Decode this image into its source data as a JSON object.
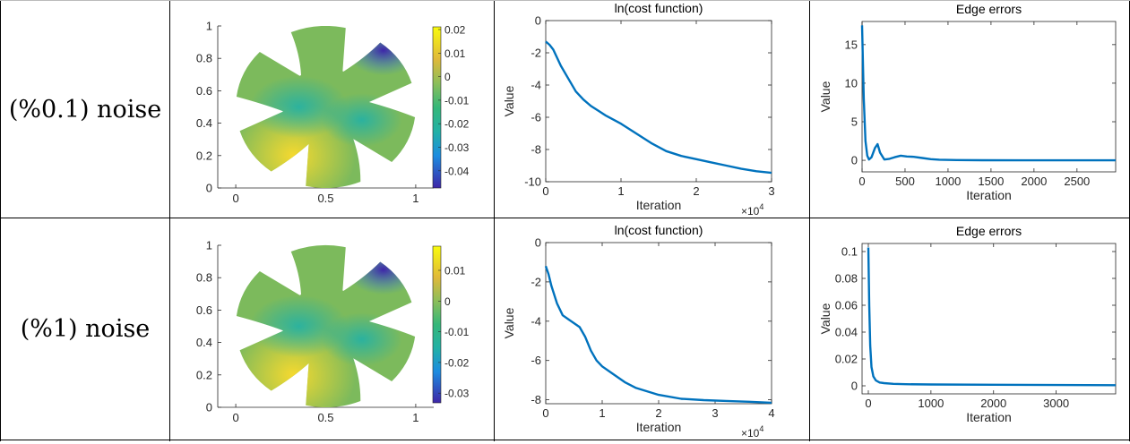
{
  "rows": [
    {
      "label": "(%0.1) noise",
      "map": {
        "xticks": [
          "0",
          "0.5",
          "1"
        ],
        "yticks": [
          "0",
          "0.2",
          "0.4",
          "0.6",
          "0.8",
          "1"
        ],
        "colorbar_ticks": [
          "0.02",
          "0.01",
          "0",
          "-0.01",
          "-0.02",
          "-0.03",
          "-0.04"
        ],
        "colors": {
          "low": "#3e26a8",
          "mid": "#22b1a6",
          "high": "#f9fb0e"
        }
      },
      "cost_chart": {
        "type": "line",
        "title": "ln(cost function)",
        "xlabel": "Iteration",
        "ylabel": "Value",
        "x_exponent_label": "×10",
        "x_exponent": "4",
        "xticks": [
          "0",
          "1",
          "2",
          "3"
        ],
        "yticks": [
          "0",
          "-2",
          "-4",
          "-6",
          "-8",
          "-10"
        ],
        "xlim": [
          0,
          3
        ],
        "ylim": [
          -10,
          0
        ],
        "series": [
          {
            "x": [
              0,
              0.05,
              0.1,
              0.2,
              0.3,
              0.4,
              0.5,
              0.6,
              0.7,
              0.8,
              1.0,
              1.2,
              1.4,
              1.6,
              1.8,
              2.0,
              2.2,
              2.4,
              2.6,
              2.8,
              3.0
            ],
            "y": [
              -1.3,
              -1.5,
              -1.8,
              -2.8,
              -3.6,
              -4.4,
              -4.9,
              -5.3,
              -5.6,
              -5.9,
              -6.4,
              -7.0,
              -7.6,
              -8.1,
              -8.4,
              -8.6,
              -8.8,
              -9.0,
              -9.2,
              -9.35,
              -9.45
            ]
          }
        ],
        "color": "#0072bd"
      },
      "edge_chart": {
        "type": "line",
        "title": "Edge errors",
        "xlabel": "Iteration",
        "ylabel": "Value",
        "xticks": [
          "0",
          "500",
          "1000",
          "1500",
          "2000",
          "2500"
        ],
        "yticks": [
          "0",
          "5",
          "10",
          "15"
        ],
        "xlim": [
          0,
          2950
        ],
        "ylim": [
          -1.5,
          18
        ],
        "series": [
          {
            "x": [
              0,
              20,
              40,
              60,
              80,
              110,
              150,
              180,
              210,
              260,
              320,
              380,
              450,
              520,
              600,
              700,
              800,
              900,
              1100,
              1400,
              2000,
              2950
            ],
            "y": [
              17.5,
              8.0,
              2.5,
              0.6,
              0.1,
              0.4,
              1.6,
              2.1,
              1.0,
              0.1,
              0.2,
              0.4,
              0.6,
              0.5,
              0.45,
              0.3,
              0.15,
              0.08,
              0.03,
              0.01,
              0.0,
              0.0
            ]
          }
        ],
        "color": "#0072bd"
      }
    },
    {
      "label": "(%1) noise",
      "map": {
        "xticks": [
          "0",
          "0.5",
          "1"
        ],
        "yticks": [
          "0",
          "0.2",
          "0.4",
          "0.6",
          "0.8",
          "1"
        ],
        "colorbar_ticks": [
          "0.01",
          "0",
          "-0.01",
          "-0.02",
          "-0.03"
        ],
        "colors": {
          "low": "#3e26a8",
          "mid": "#22b1a6",
          "high": "#f9fb0e"
        }
      },
      "cost_chart": {
        "type": "line",
        "title": "ln(cost function)",
        "xlabel": "Iteration",
        "ylabel": "Value",
        "x_exponent_label": "×10",
        "x_exponent": "4",
        "xticks": [
          "0",
          "1",
          "2",
          "3",
          "4"
        ],
        "yticks": [
          "0",
          "-2",
          "-4",
          "-6",
          "-8"
        ],
        "xlim": [
          0,
          4
        ],
        "ylim": [
          -8.2,
          0
        ],
        "series": [
          {
            "x": [
              0,
              0.05,
              0.1,
              0.2,
              0.3,
              0.4,
              0.5,
              0.6,
              0.7,
              0.8,
              0.9,
              1.0,
              1.2,
              1.4,
              1.6,
              2.0,
              2.4,
              2.8,
              3.2,
              3.6,
              4.0
            ],
            "y": [
              -1.2,
              -1.6,
              -2.2,
              -3.1,
              -3.7,
              -3.9,
              -4.1,
              -4.3,
              -4.8,
              -5.5,
              -6.0,
              -6.3,
              -6.7,
              -7.1,
              -7.4,
              -7.75,
              -7.95,
              -8.02,
              -8.06,
              -8.1,
              -8.15
            ]
          }
        ],
        "color": "#0072bd"
      },
      "edge_chart": {
        "type": "line",
        "title": "Edge errors",
        "xlabel": "Iteration",
        "ylabel": "Value",
        "xticks": [
          "0",
          "1000",
          "2000",
          "3000"
        ],
        "yticks": [
          "0",
          "0.02",
          "0.04",
          "0.06",
          "0.08",
          "0.1"
        ],
        "xlim": [
          -100,
          3950
        ],
        "ylim": [
          -0.006,
          0.106
        ],
        "series": [
          {
            "x": [
              0,
              15,
              30,
              50,
              80,
              120,
              180,
              250,
              400,
              600,
              1000,
              2000,
              3000,
              3950
            ],
            "y": [
              0.103,
              0.06,
              0.03,
              0.014,
              0.007,
              0.004,
              0.0025,
              0.002,
              0.0015,
              0.0012,
              0.001,
              0.0008,
              0.0006,
              0.0005
            ]
          }
        ],
        "color": "#0072bd"
      }
    }
  ]
}
